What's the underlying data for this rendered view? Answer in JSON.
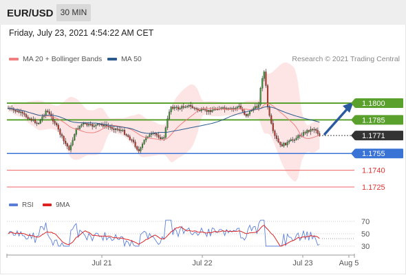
{
  "header": {
    "symbol": "EUR/USD",
    "timeframe_label": "30 MIN"
  },
  "datetime": "Friday, July 23, 2021 4:54:22 AM CET",
  "legend": {
    "ma20_label": "MA 20 + Bollinger Bands",
    "ma50_label": "MA 50",
    "copyright": "Research © 2021 Trading Central"
  },
  "rsi_legend": {
    "rsi_label": "RSI",
    "ma_label": "9MA"
  },
  "colors": {
    "ma20": "#f08080",
    "ma50": "#2c5a8c",
    "bollinger_fill": "#fde2e2",
    "resistance_green": "#5aa02c",
    "support_blue": "#3a73d6",
    "target_red": "#f06060",
    "current_price_box": "#333333",
    "arrow": "#2c5aa0"
  },
  "levels": [
    {
      "label": "1.1800",
      "value": 1.18,
      "kind": "resistance"
    },
    {
      "label": "1.1785",
      "value": 1.1785,
      "kind": "resistance"
    },
    {
      "label": "1.1771",
      "value": 1.1771,
      "kind": "current"
    },
    {
      "label": "1.1755",
      "value": 1.1755,
      "kind": "support"
    },
    {
      "label": "1.1740",
      "value": 1.174,
      "kind": "target"
    },
    {
      "label": "1.1725",
      "value": 1.1725,
      "kind": "target"
    }
  ],
  "x_axis": {
    "labels": [
      "Jul 21",
      "Jul 22",
      "Jul 23",
      "Aug 5"
    ]
  },
  "rsi_axis": {
    "labels": [
      "70",
      "50",
      "30"
    ]
  }
}
